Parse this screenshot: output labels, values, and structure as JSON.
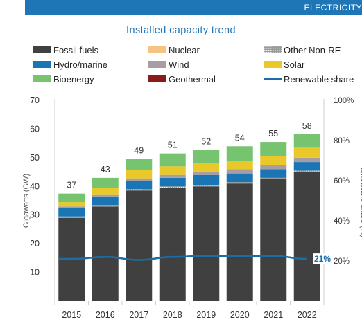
{
  "header": {
    "banner_text": "ELECTRICITY"
  },
  "chart_data": {
    "type": "bar",
    "title": "Installed capacity trend",
    "ylabel": "Gigawatts (GW)",
    "y2label": "Renewable share (%)",
    "ylim": [
      0,
      70
    ],
    "y2lim": [
      0,
      100
    ],
    "yticks": [
      "10",
      "20",
      "30",
      "40",
      "50",
      "60",
      "70"
    ],
    "y2ticks": [
      "20%",
      "40%",
      "60%",
      "80%",
      "100%"
    ],
    "categories": [
      "2015",
      "2016",
      "2017",
      "2018",
      "2019",
      "2020",
      "2021",
      "2022"
    ],
    "totals": [
      "37",
      "43",
      "49",
      "51",
      "52",
      "54",
      "55",
      "58"
    ],
    "legend": [
      "Fossil fuels",
      "Nuclear",
      "Other Non-RE",
      "Hydro/marine",
      "Wind",
      "Solar",
      "Bioenergy",
      "Geothermal",
      "Renewable share"
    ],
    "series": [
      {
        "name": "Fossil fuels",
        "color": "#404040",
        "values": [
          29,
          33,
          38.5,
          39.5,
          40,
          41,
          42.5,
          45
        ]
      },
      {
        "name": "Other Non-RE",
        "color": "#bfbfbf",
        "values": [
          0.5,
          0.5,
          0.5,
          0.5,
          0.5,
          0.5,
          0.5,
          0.5
        ]
      },
      {
        "name": "Nuclear",
        "color": "#f7c385",
        "values": [
          0,
          0,
          0,
          0,
          0,
          0,
          0,
          0
        ]
      },
      {
        "name": "Hydro/marine",
        "color": "#1a75b5",
        "values": [
          3,
          3,
          3,
          3,
          3.5,
          3,
          3,
          3
        ]
      },
      {
        "name": "Wind",
        "color": "#a79da2",
        "values": [
          0.5,
          0.5,
          0.8,
          1,
          1.2,
          1.5,
          1.5,
          1.5
        ]
      },
      {
        "name": "Solar",
        "color": "#e9c829",
        "values": [
          1.5,
          2.5,
          3,
          3,
          3,
          3,
          3,
          3.5
        ]
      },
      {
        "name": "Geothermal",
        "color": "#8b1a1a",
        "values": [
          0,
          0,
          0,
          0,
          0,
          0,
          0,
          0
        ]
      },
      {
        "name": "Bioenergy",
        "color": "#76c46f",
        "values": [
          3,
          3.5,
          3.8,
          4.5,
          4.5,
          5,
          5,
          4.7
        ]
      }
    ],
    "line": {
      "name": "Renewable share",
      "color": "#1a6ea8",
      "values": [
        21,
        22,
        20.5,
        22,
        22.5,
        22.5,
        22.5,
        21
      ],
      "end_label": "21%"
    }
  }
}
